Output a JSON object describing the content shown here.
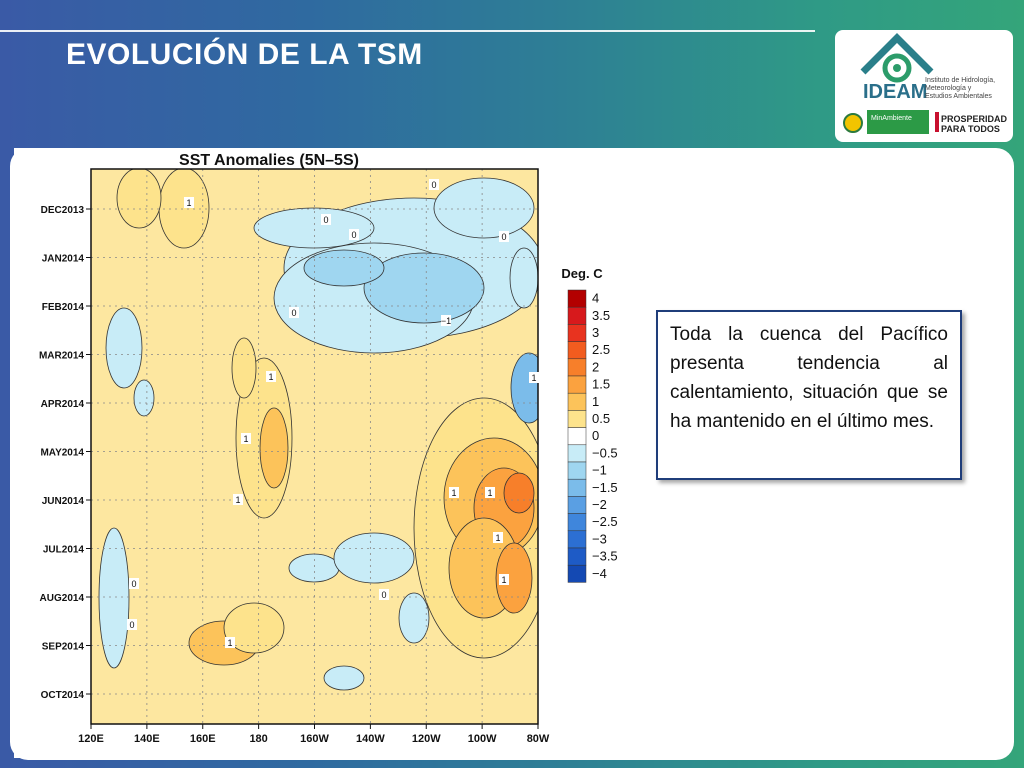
{
  "slide": {
    "title": "EVOLUCIÓN DE LA TSM"
  },
  "logo": {
    "name": "IDEAM",
    "subtitle_lines": [
      "Instituto de Hidrología,",
      "Meteorología y",
      "Estudios Ambientales"
    ],
    "ministry": "MinAmbiente",
    "slogan_lines": [
      "PROSPERIDAD",
      "PARA TODOS"
    ]
  },
  "chart_data": {
    "type": "heatmap",
    "title": "SST Anomalies (5N–5S)",
    "x_ticks": [
      "120E",
      "140E",
      "160E",
      "180",
      "160W",
      "140W",
      "120W",
      "100W",
      "80W"
    ],
    "y_ticks": [
      "DEC2013",
      "JAN2014",
      "FEB2014",
      "MAR2014",
      "APR2014",
      "MAY2014",
      "JUN2014",
      "JUL2014",
      "AUG2014",
      "SEP2014",
      "OCT2014"
    ],
    "colorbar_title": "Deg. C",
    "colorbar_labels": [
      "4",
      "3.5",
      "3",
      "2.5",
      "2",
      "1.5",
      "1",
      "0.5",
      "0",
      "−0.5",
      "−1",
      "−1.5",
      "−2",
      "−2.5",
      "−3",
      "−3.5",
      "−4"
    ],
    "colorbar_colors": [
      "#b30000",
      "#d7191c",
      "#e8331f",
      "#f25c1f",
      "#f77f2a",
      "#fba23f",
      "#fcc35a",
      "#fde38c",
      "#ffffff",
      "#c8ecf7",
      "#9fd6f0",
      "#7bbcea",
      "#5a9fe3",
      "#3f86dc",
      "#2c6fd3",
      "#1e5bc6",
      "#1449b3"
    ],
    "contour_labels": [
      "1",
      "0",
      "0",
      "0",
      "0",
      "−1",
      "0",
      "1",
      "1",
      "1",
      "1",
      "1",
      "1",
      "1",
      "1",
      "0",
      "0",
      "0",
      "1"
    ]
  },
  "note": {
    "text": "Toda la cuenca del Pacífico presenta tendencia al calentamiento, situación que se ha mantenido en el último mes."
  }
}
